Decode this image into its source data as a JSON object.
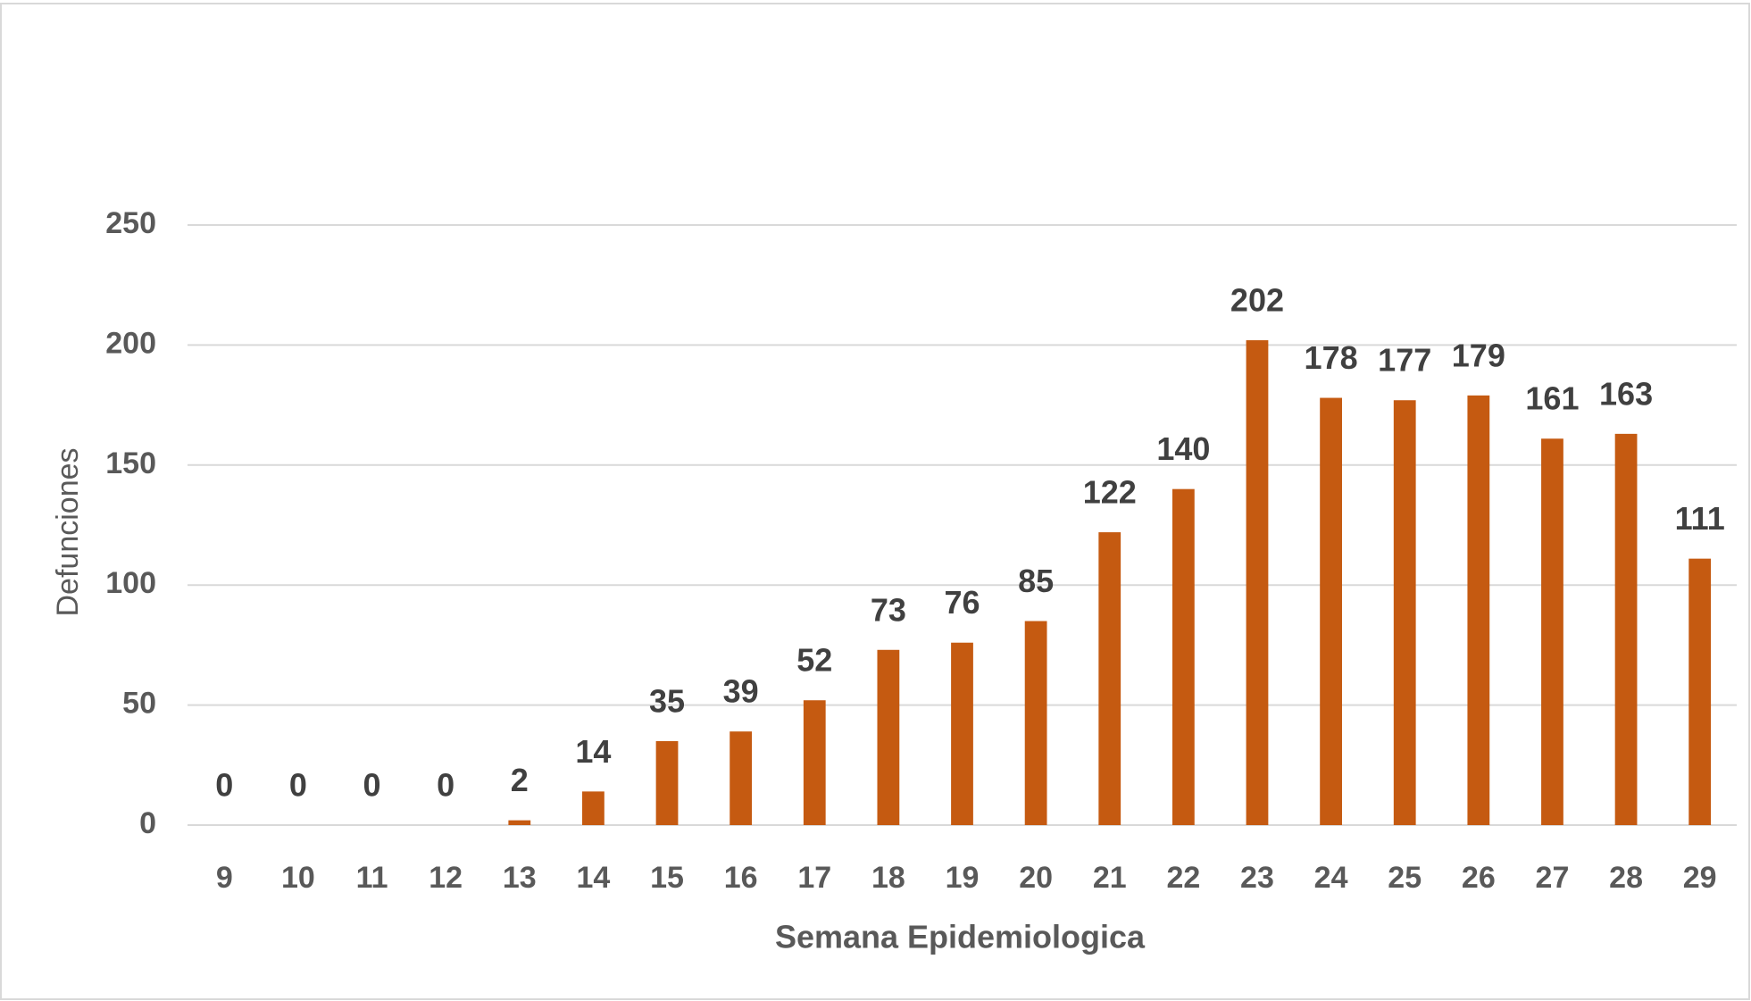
{
  "chart_data": {
    "type": "bar",
    "x_label": "Semana Epidemiologica",
    "y_label": "Defunciones",
    "categories": [
      "9",
      "10",
      "11",
      "12",
      "13",
      "14",
      "15",
      "16",
      "17",
      "18",
      "19",
      "20",
      "21",
      "22",
      "23",
      "24",
      "25",
      "26",
      "27",
      "28",
      "29"
    ],
    "values": [
      0,
      0,
      0,
      0,
      2,
      14,
      35,
      39,
      52,
      73,
      76,
      85,
      122,
      140,
      202,
      178,
      177,
      179,
      161,
      163,
      111
    ],
    "color": "#c55a11",
    "ylim": [
      0,
      250
    ],
    "yticks": [
      0,
      50,
      100,
      150,
      200,
      250
    ],
    "grid": true
  }
}
